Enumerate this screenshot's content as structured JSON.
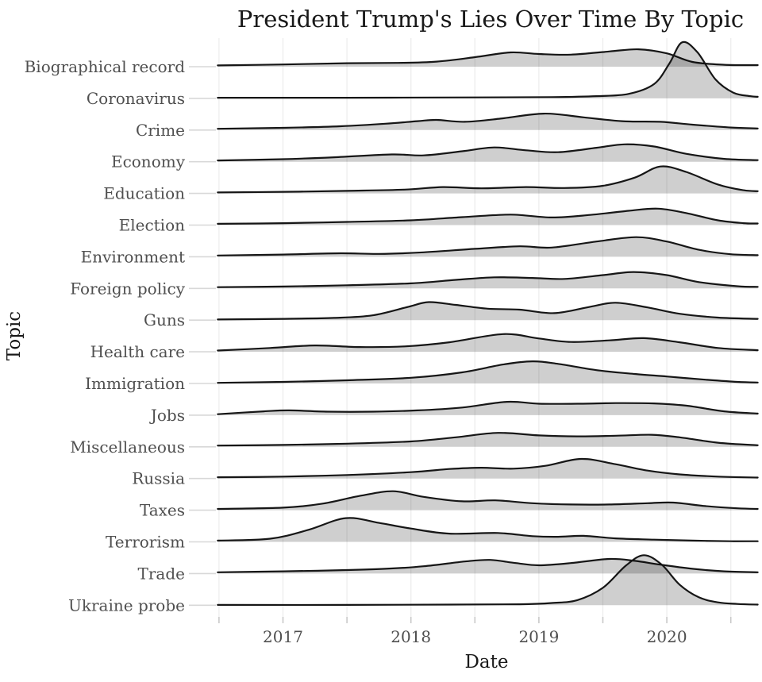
{
  "title": "President Trump's Lies Over Time By Topic",
  "axes": {
    "x_label": "Date",
    "y_label": "Topic",
    "x_tick_labels": [
      "2017",
      "2018",
      "2019",
      "2020"
    ],
    "x_tick_years": [
      2017,
      2018,
      2019,
      2020
    ],
    "x_minor_tick_years": [
      2016.5,
      2017.5,
      2018.5,
      2019.5,
      2020.5
    ],
    "x_range": [
      2016.49,
      2020.71
    ]
  },
  "chart_data": {
    "type": "area",
    "variant": "ridgeline_density",
    "title": "President Trump's Lies Over Time By Topic",
    "xlabel": "Date",
    "ylabel": "Topic",
    "x_unit": "decimal_year",
    "height_unit": "row_gaps (1.0 = vertical distance between adjacent topic baselines)",
    "grid": "vertical_only",
    "categories": [
      "Biographical record",
      "Coronavirus",
      "Crime",
      "Economy",
      "Education",
      "Election",
      "Environment",
      "Foreign policy",
      "Guns",
      "Health care",
      "Immigration",
      "Jobs",
      "Miscellaneous",
      "Russia",
      "Taxes",
      "Terrorism",
      "Trade",
      "Ukraine probe"
    ],
    "series": [
      {
        "name": "Biographical record",
        "points": [
          [
            2016.49,
            0.04
          ],
          [
            2017.0,
            0.07
          ],
          [
            2017.5,
            0.11
          ],
          [
            2017.9,
            0.12
          ],
          [
            2018.2,
            0.16
          ],
          [
            2018.5,
            0.3
          ],
          [
            2018.78,
            0.45
          ],
          [
            2019.0,
            0.4
          ],
          [
            2019.25,
            0.38
          ],
          [
            2019.55,
            0.48
          ],
          [
            2019.78,
            0.55
          ],
          [
            2020.0,
            0.42
          ],
          [
            2020.2,
            0.15
          ],
          [
            2020.45,
            0.06
          ],
          [
            2020.71,
            0.05
          ]
        ]
      },
      {
        "name": "Coronavirus",
        "points": [
          [
            2016.49,
            0.02
          ],
          [
            2017.5,
            0.02
          ],
          [
            2018.5,
            0.03
          ],
          [
            2019.1,
            0.04
          ],
          [
            2019.45,
            0.07
          ],
          [
            2019.7,
            0.14
          ],
          [
            2019.9,
            0.45
          ],
          [
            2020.02,
            1.1
          ],
          [
            2020.12,
            1.77
          ],
          [
            2020.24,
            1.45
          ],
          [
            2020.38,
            0.6
          ],
          [
            2020.52,
            0.18
          ],
          [
            2020.65,
            0.07
          ],
          [
            2020.71,
            0.05
          ]
        ]
      },
      {
        "name": "Crime",
        "points": [
          [
            2016.49,
            0.04
          ],
          [
            2017.0,
            0.07
          ],
          [
            2017.45,
            0.12
          ],
          [
            2017.8,
            0.2
          ],
          [
            2018.05,
            0.28
          ],
          [
            2018.2,
            0.32
          ],
          [
            2018.42,
            0.26
          ],
          [
            2018.7,
            0.36
          ],
          [
            2019.04,
            0.52
          ],
          [
            2019.35,
            0.4
          ],
          [
            2019.65,
            0.28
          ],
          [
            2019.95,
            0.26
          ],
          [
            2020.2,
            0.17
          ],
          [
            2020.5,
            0.08
          ],
          [
            2020.71,
            0.05
          ]
        ]
      },
      {
        "name": "Economy",
        "points": [
          [
            2016.49,
            0.04
          ],
          [
            2017.0,
            0.08
          ],
          [
            2017.4,
            0.14
          ],
          [
            2017.85,
            0.23
          ],
          [
            2018.1,
            0.2
          ],
          [
            2018.4,
            0.33
          ],
          [
            2018.65,
            0.45
          ],
          [
            2018.9,
            0.36
          ],
          [
            2019.15,
            0.3
          ],
          [
            2019.45,
            0.44
          ],
          [
            2019.67,
            0.55
          ],
          [
            2019.9,
            0.48
          ],
          [
            2020.15,
            0.25
          ],
          [
            2020.45,
            0.09
          ],
          [
            2020.71,
            0.05
          ]
        ]
      },
      {
        "name": "Education",
        "points": [
          [
            2016.49,
            0.03
          ],
          [
            2017.0,
            0.05
          ],
          [
            2017.5,
            0.08
          ],
          [
            2017.95,
            0.12
          ],
          [
            2018.25,
            0.2
          ],
          [
            2018.55,
            0.16
          ],
          [
            2018.9,
            0.2
          ],
          [
            2019.2,
            0.17
          ],
          [
            2019.5,
            0.24
          ],
          [
            2019.75,
            0.5
          ],
          [
            2019.95,
            0.85
          ],
          [
            2020.15,
            0.68
          ],
          [
            2020.4,
            0.28
          ],
          [
            2020.6,
            0.1
          ],
          [
            2020.71,
            0.07
          ]
        ]
      },
      {
        "name": "Election",
        "points": [
          [
            2016.49,
            0.04
          ],
          [
            2017.0,
            0.06
          ],
          [
            2017.5,
            0.1
          ],
          [
            2018.0,
            0.15
          ],
          [
            2018.4,
            0.25
          ],
          [
            2018.78,
            0.33
          ],
          [
            2019.1,
            0.24
          ],
          [
            2019.4,
            0.32
          ],
          [
            2019.7,
            0.45
          ],
          [
            2019.93,
            0.52
          ],
          [
            2020.15,
            0.38
          ],
          [
            2020.4,
            0.15
          ],
          [
            2020.6,
            0.06
          ],
          [
            2020.71,
            0.05
          ]
        ]
      },
      {
        "name": "Environment",
        "points": [
          [
            2016.49,
            0.04
          ],
          [
            2017.0,
            0.07
          ],
          [
            2017.45,
            0.11
          ],
          [
            2017.75,
            0.09
          ],
          [
            2018.1,
            0.14
          ],
          [
            2018.5,
            0.25
          ],
          [
            2018.85,
            0.33
          ],
          [
            2019.1,
            0.29
          ],
          [
            2019.45,
            0.48
          ],
          [
            2019.76,
            0.62
          ],
          [
            2020.0,
            0.48
          ],
          [
            2020.25,
            0.22
          ],
          [
            2020.5,
            0.08
          ],
          [
            2020.71,
            0.05
          ]
        ]
      },
      {
        "name": "Foreign policy",
        "points": [
          [
            2016.49,
            0.04
          ],
          [
            2017.0,
            0.06
          ],
          [
            2017.5,
            0.1
          ],
          [
            2018.0,
            0.16
          ],
          [
            2018.35,
            0.27
          ],
          [
            2018.65,
            0.35
          ],
          [
            2018.95,
            0.33
          ],
          [
            2019.2,
            0.3
          ],
          [
            2019.5,
            0.42
          ],
          [
            2019.74,
            0.52
          ],
          [
            2020.0,
            0.42
          ],
          [
            2020.25,
            0.2
          ],
          [
            2020.55,
            0.07
          ],
          [
            2020.71,
            0.05
          ]
        ]
      },
      {
        "name": "Guns",
        "points": [
          [
            2016.49,
            0.02
          ],
          [
            2017.0,
            0.04
          ],
          [
            2017.4,
            0.07
          ],
          [
            2017.7,
            0.15
          ],
          [
            2017.98,
            0.42
          ],
          [
            2018.14,
            0.57
          ],
          [
            2018.35,
            0.48
          ],
          [
            2018.6,
            0.36
          ],
          [
            2018.85,
            0.33
          ],
          [
            2019.12,
            0.22
          ],
          [
            2019.4,
            0.42
          ],
          [
            2019.6,
            0.55
          ],
          [
            2019.85,
            0.4
          ],
          [
            2020.1,
            0.2
          ],
          [
            2020.4,
            0.08
          ],
          [
            2020.71,
            0.04
          ]
        ]
      },
      {
        "name": "Health care",
        "points": [
          [
            2016.49,
            0.04
          ],
          [
            2016.9,
            0.12
          ],
          [
            2017.25,
            0.2
          ],
          [
            2017.6,
            0.15
          ],
          [
            2017.95,
            0.17
          ],
          [
            2018.3,
            0.3
          ],
          [
            2018.72,
            0.56
          ],
          [
            2019.0,
            0.42
          ],
          [
            2019.25,
            0.31
          ],
          [
            2019.55,
            0.36
          ],
          [
            2019.82,
            0.43
          ],
          [
            2020.1,
            0.3
          ],
          [
            2020.4,
            0.12
          ],
          [
            2020.71,
            0.05
          ]
        ]
      },
      {
        "name": "Immigration",
        "points": [
          [
            2016.49,
            0.02
          ],
          [
            2017.0,
            0.05
          ],
          [
            2017.5,
            0.1
          ],
          [
            2018.0,
            0.18
          ],
          [
            2018.4,
            0.35
          ],
          [
            2018.72,
            0.6
          ],
          [
            2018.95,
            0.7
          ],
          [
            2019.15,
            0.62
          ],
          [
            2019.45,
            0.42
          ],
          [
            2019.75,
            0.3
          ],
          [
            2020.0,
            0.22
          ],
          [
            2020.3,
            0.12
          ],
          [
            2020.55,
            0.05
          ],
          [
            2020.71,
            0.03
          ]
        ]
      },
      {
        "name": "Jobs",
        "points": [
          [
            2016.49,
            0.03
          ],
          [
            2016.85,
            0.12
          ],
          [
            2017.05,
            0.15
          ],
          [
            2017.35,
            0.11
          ],
          [
            2017.7,
            0.11
          ],
          [
            2018.05,
            0.15
          ],
          [
            2018.4,
            0.24
          ],
          [
            2018.75,
            0.42
          ],
          [
            2019.0,
            0.36
          ],
          [
            2019.3,
            0.36
          ],
          [
            2019.6,
            0.38
          ],
          [
            2019.9,
            0.37
          ],
          [
            2020.15,
            0.3
          ],
          [
            2020.45,
            0.12
          ],
          [
            2020.71,
            0.05
          ]
        ]
      },
      {
        "name": "Miscellaneous",
        "points": [
          [
            2016.49,
            0.04
          ],
          [
            2017.0,
            0.06
          ],
          [
            2017.5,
            0.1
          ],
          [
            2018.0,
            0.17
          ],
          [
            2018.35,
            0.3
          ],
          [
            2018.68,
            0.44
          ],
          [
            2019.0,
            0.36
          ],
          [
            2019.3,
            0.33
          ],
          [
            2019.6,
            0.35
          ],
          [
            2019.88,
            0.38
          ],
          [
            2020.1,
            0.3
          ],
          [
            2020.4,
            0.13
          ],
          [
            2020.71,
            0.05
          ]
        ]
      },
      {
        "name": "Russia",
        "points": [
          [
            2016.49,
            0.04
          ],
          [
            2017.0,
            0.06
          ],
          [
            2017.5,
            0.11
          ],
          [
            2018.0,
            0.2
          ],
          [
            2018.3,
            0.3
          ],
          [
            2018.55,
            0.34
          ],
          [
            2018.8,
            0.31
          ],
          [
            2019.05,
            0.4
          ],
          [
            2019.33,
            0.62
          ],
          [
            2019.6,
            0.45
          ],
          [
            2019.85,
            0.25
          ],
          [
            2020.1,
            0.13
          ],
          [
            2020.4,
            0.06
          ],
          [
            2020.71,
            0.03
          ]
        ]
      },
      {
        "name": "Taxes",
        "points": [
          [
            2016.49,
            0.04
          ],
          [
            2017.0,
            0.08
          ],
          [
            2017.3,
            0.2
          ],
          [
            2017.6,
            0.45
          ],
          [
            2017.86,
            0.6
          ],
          [
            2018.1,
            0.42
          ],
          [
            2018.4,
            0.28
          ],
          [
            2018.66,
            0.31
          ],
          [
            2018.95,
            0.22
          ],
          [
            2019.25,
            0.18
          ],
          [
            2019.55,
            0.18
          ],
          [
            2019.85,
            0.22
          ],
          [
            2020.05,
            0.24
          ],
          [
            2020.3,
            0.13
          ],
          [
            2020.55,
            0.06
          ],
          [
            2020.71,
            0.04
          ]
        ]
      },
      {
        "name": "Terrorism",
        "points": [
          [
            2016.49,
            0.04
          ],
          [
            2016.9,
            0.1
          ],
          [
            2017.2,
            0.38
          ],
          [
            2017.49,
            0.75
          ],
          [
            2017.75,
            0.6
          ],
          [
            2018.0,
            0.42
          ],
          [
            2018.3,
            0.26
          ],
          [
            2018.68,
            0.28
          ],
          [
            2018.95,
            0.18
          ],
          [
            2019.15,
            0.16
          ],
          [
            2019.35,
            0.19
          ],
          [
            2019.6,
            0.11
          ],
          [
            2019.9,
            0.07
          ],
          [
            2020.2,
            0.04
          ],
          [
            2020.5,
            0.02
          ],
          [
            2020.71,
            0.02
          ]
        ]
      },
      {
        "name": "Trade",
        "points": [
          [
            2016.49,
            0.04
          ],
          [
            2017.0,
            0.07
          ],
          [
            2017.4,
            0.1
          ],
          [
            2017.8,
            0.15
          ],
          [
            2018.1,
            0.23
          ],
          [
            2018.42,
            0.38
          ],
          [
            2018.62,
            0.43
          ],
          [
            2018.82,
            0.33
          ],
          [
            2019.0,
            0.26
          ],
          [
            2019.25,
            0.33
          ],
          [
            2019.55,
            0.46
          ],
          [
            2019.75,
            0.4
          ],
          [
            2019.95,
            0.28
          ],
          [
            2020.2,
            0.15
          ],
          [
            2020.45,
            0.07
          ],
          [
            2020.71,
            0.04
          ]
        ]
      },
      {
        "name": "Ukraine probe",
        "points": [
          [
            2016.49,
            0.01
          ],
          [
            2017.5,
            0.01
          ],
          [
            2018.3,
            0.02
          ],
          [
            2018.85,
            0.03
          ],
          [
            2019.1,
            0.07
          ],
          [
            2019.3,
            0.16
          ],
          [
            2019.5,
            0.55
          ],
          [
            2019.68,
            1.25
          ],
          [
            2019.82,
            1.58
          ],
          [
            2019.96,
            1.28
          ],
          [
            2020.1,
            0.65
          ],
          [
            2020.25,
            0.25
          ],
          [
            2020.4,
            0.09
          ],
          [
            2020.55,
            0.04
          ],
          [
            2020.71,
            0.02
          ]
        ]
      }
    ]
  },
  "style": {
    "background": "#ffffff",
    "curve_stroke": "#161616",
    "curve_fill": "rgba(0,0,0,0.19)",
    "gridline_color": "#ededed",
    "axis_tick_color": "#c9c9c9",
    "y_stub_color": "#d8d8d8",
    "tick_label_color": "#4f4f4f",
    "title_color": "#191919"
  }
}
